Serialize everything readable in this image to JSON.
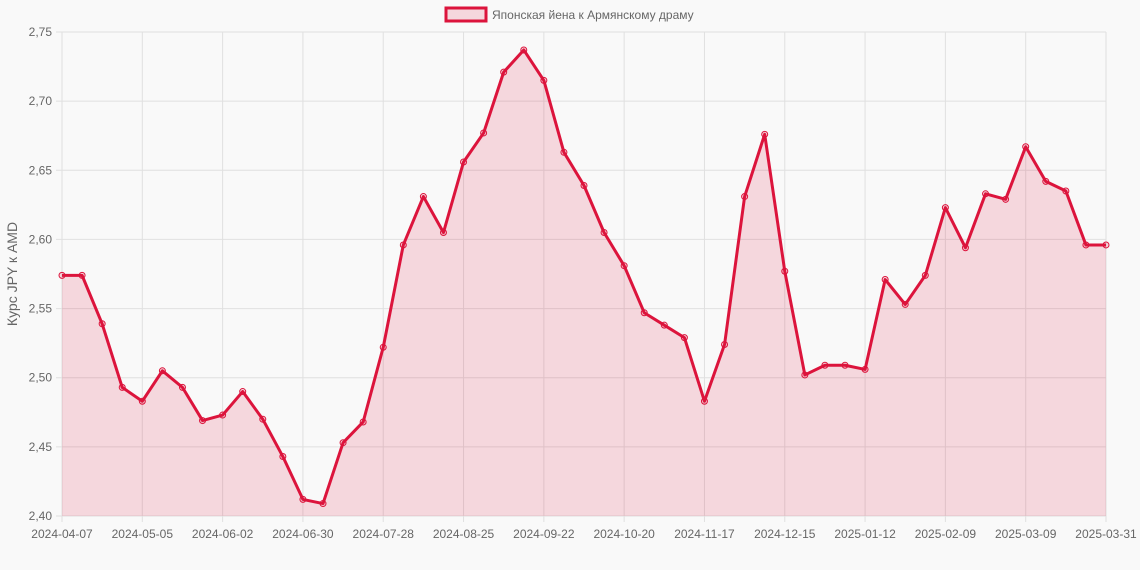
{
  "legend": {
    "label": "Японская йена к Армянскому драму",
    "swatch_fill": "rgba(220,20,60,0.15)",
    "swatch_stroke": "#dc143c"
  },
  "colors": {
    "line": "#dc143c",
    "fill": "rgba(220,20,60,0.15)",
    "grid": "#e0e0e0",
    "background": "#f9f9f9",
    "text": "#666666"
  },
  "chart_data": {
    "type": "line",
    "title": "",
    "xlabel": "",
    "ylabel": "Курс JPY к AMD",
    "ylim": [
      2.4,
      2.75
    ],
    "yticks": [
      "2,40",
      "2,45",
      "2,50",
      "2,55",
      "2,60",
      "2,65",
      "2,70",
      "2,75"
    ],
    "ytick_values": [
      2.4,
      2.45,
      2.5,
      2.55,
      2.6,
      2.65,
      2.7,
      2.75
    ],
    "xtick_labels": [
      "2024-04-07",
      "2024-05-05",
      "2024-06-02",
      "2024-06-30",
      "2024-07-28",
      "2024-08-25",
      "2024-09-22",
      "2024-10-20",
      "2024-11-17",
      "2024-12-15",
      "2025-01-12",
      "2025-02-09",
      "2025-03-09",
      "2025-03-31"
    ],
    "xtick_indices": [
      0,
      4,
      8,
      12,
      16,
      20,
      24,
      28,
      32,
      36,
      40,
      44,
      48,
      52
    ],
    "grid": true,
    "legend_position": "top",
    "fill": true,
    "x": [
      "2024-04-07",
      "2024-04-14",
      "2024-04-21",
      "2024-04-28",
      "2024-05-05",
      "2024-05-12",
      "2024-05-19",
      "2024-05-26",
      "2024-06-02",
      "2024-06-09",
      "2024-06-16",
      "2024-06-23",
      "2024-06-30",
      "2024-07-07",
      "2024-07-14",
      "2024-07-21",
      "2024-07-28",
      "2024-08-04",
      "2024-08-11",
      "2024-08-18",
      "2024-08-25",
      "2024-09-01",
      "2024-09-08",
      "2024-09-15",
      "2024-09-22",
      "2024-09-29",
      "2024-10-06",
      "2024-10-13",
      "2024-10-20",
      "2024-10-27",
      "2024-11-03",
      "2024-11-10",
      "2024-11-17",
      "2024-11-24",
      "2024-12-01",
      "2024-12-08",
      "2024-12-15",
      "2024-12-22",
      "2024-12-29",
      "2025-01-05",
      "2025-01-12",
      "2025-01-19",
      "2025-01-26",
      "2025-02-02",
      "2025-02-09",
      "2025-02-16",
      "2025-02-23",
      "2025-03-02",
      "2025-03-09",
      "2025-03-16",
      "2025-03-23",
      "2025-03-30",
      "2025-03-31"
    ],
    "series": [
      {
        "name": "Японская йена к Армянскому драму",
        "values": [
          2.574,
          2.574,
          2.539,
          2.493,
          2.483,
          2.505,
          2.493,
          2.469,
          2.473,
          2.49,
          2.47,
          2.443,
          2.412,
          2.409,
          2.453,
          2.468,
          2.522,
          2.596,
          2.631,
          2.605,
          2.656,
          2.677,
          2.721,
          2.737,
          2.715,
          2.663,
          2.639,
          2.605,
          2.581,
          2.547,
          2.538,
          2.529,
          2.483,
          2.524,
          2.631,
          2.676,
          2.577,
          2.502,
          2.509,
          2.509,
          2.506,
          2.571,
          2.553,
          2.574,
          2.623,
          2.594,
          2.633,
          2.629,
          2.667,
          2.642,
          2.635,
          2.596,
          2.596
        ]
      }
    ]
  }
}
